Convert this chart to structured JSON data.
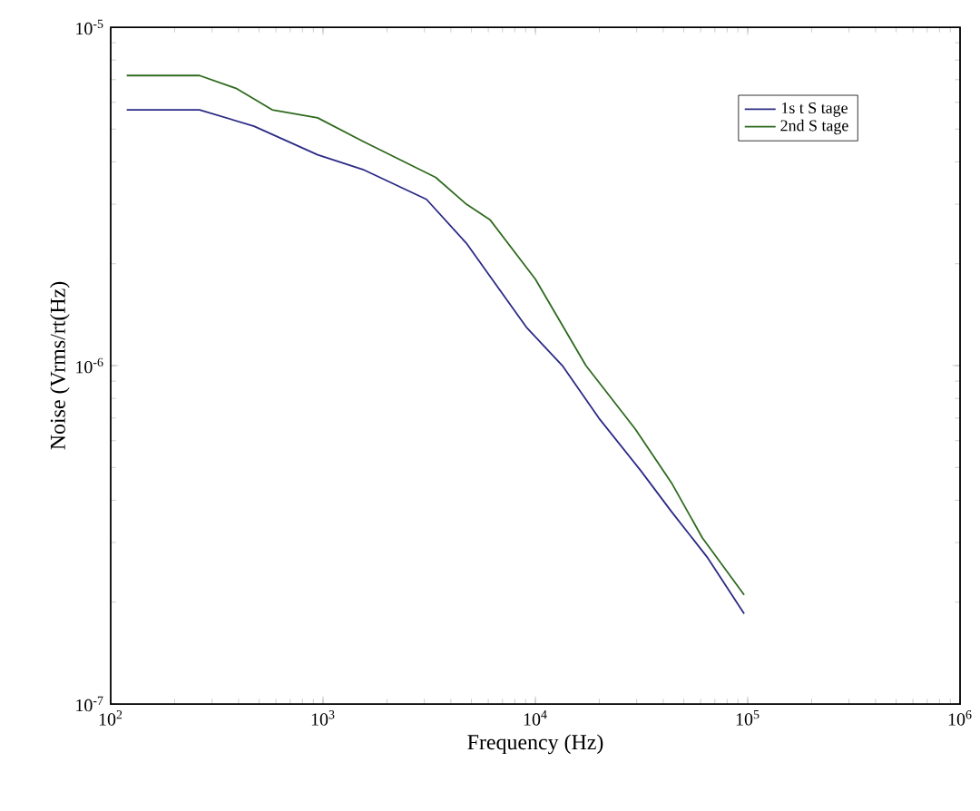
{
  "chart_data": {
    "type": "line",
    "xlabel": "Frequency (Hz)",
    "ylabel": "Noise (Vrms/rt(Hz)",
    "log": "xy",
    "legend": "top right",
    "marker": "none",
    "line_style": "solid",
    "xlim": [
      100,
      1000000
    ],
    "ylim": [
      1e-07,
      1e-05
    ],
    "xticks": [
      {
        "value": 100,
        "label": "10$^{2}$"
      },
      {
        "value": 1000,
        "label": "10$^{3}$"
      },
      {
        "value": 10000,
        "label": "10$^{4}$"
      },
      {
        "value": 100000,
        "label": "10$^{5}$"
      },
      {
        "value": 1000000,
        "label": "10$^{6}$"
      }
    ],
    "yticks": [
      {
        "value": 1e-07,
        "label": "10$^{-7}$"
      },
      {
        "value": 1e-06,
        "label": "10$^{-6}$"
      },
      {
        "value": 1e-05,
        "label": "10$^{-5}$"
      }
    ],
    "series": [
      {
        "name": "1s t S tage",
        "color": "#2b2b86",
        "x": [
          119,
          262,
          473,
          943,
          1540,
          3070,
          4730,
          5880,
          9060,
          13400,
          19900,
          31300,
          43800,
          64900,
          96200
        ],
        "values": [
          5.7e-06,
          5.7e-06,
          5.1e-06,
          4.2e-06,
          3.8e-06,
          3.1e-06,
          2.3e-06,
          1.9e-06,
          1.3e-06,
          1e-06,
          7e-07,
          4.9e-07,
          3.7e-07,
          2.7e-07,
          1.85e-07
        ]
      },
      {
        "name": "2nd S tage",
        "color": "#2f6a1f",
        "x": [
          119,
          262,
          389,
          576,
          943,
          1540,
          3390,
          4730,
          6110,
          10000,
          17300,
          29500,
          43800,
          61100,
          96200
        ],
        "values": [
          7.2e-06,
          7.2e-06,
          6.6e-06,
          5.7e-06,
          5.4e-06,
          4.6e-06,
          3.6e-06,
          3e-06,
          2.7e-06,
          1.8e-06,
          1e-06,
          6.5e-07,
          4.5e-07,
          3.1e-07,
          2.1e-07
        ]
      }
    ]
  }
}
